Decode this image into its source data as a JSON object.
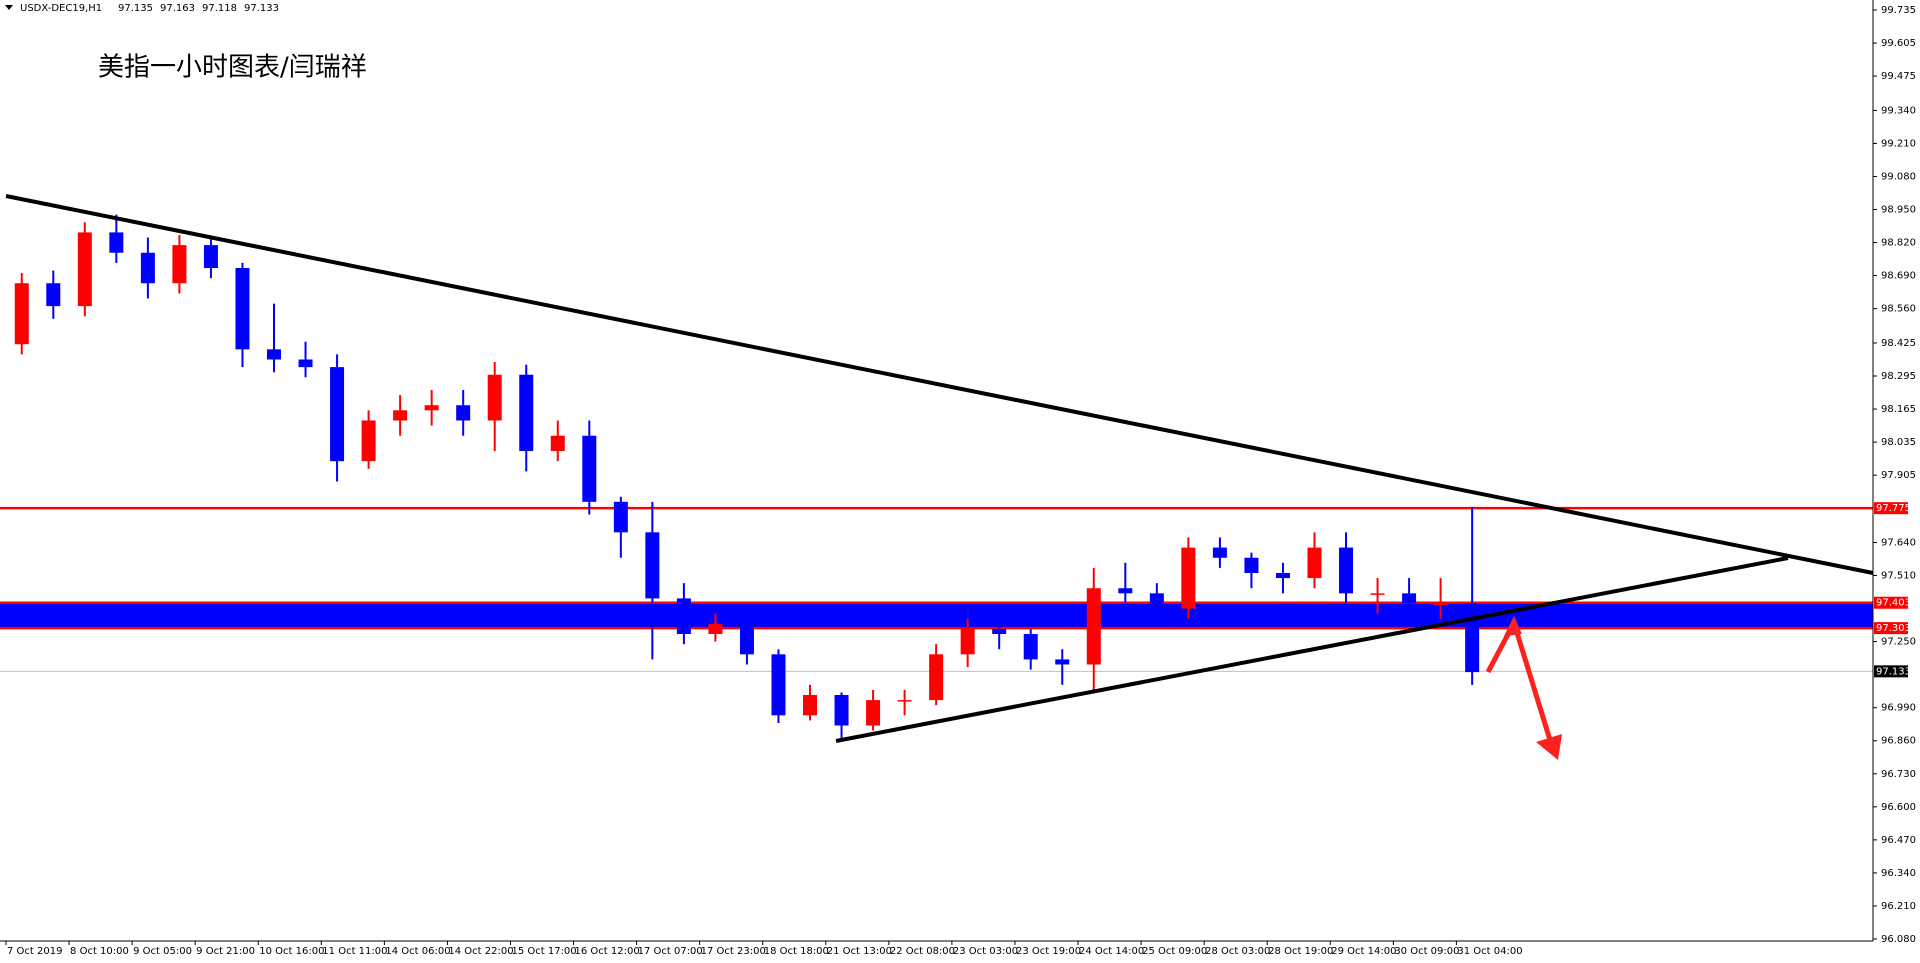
{
  "chart_data": {
    "type": "candlestick",
    "symbol": "USDX-DEC19,H1",
    "quote": [
      97.135,
      97.163,
      97.118,
      97.133
    ],
    "title": "美指一小时图表/闫瑞祥",
    "x_labels": [
      "7 Oct 2019",
      "8 Oct 10:00",
      "9 Oct 05:00",
      "9 Oct 21:00",
      "10 Oct 16:00",
      "11 Oct 11:00",
      "14 Oct 06:00",
      "14 Oct 22:00",
      "15 Oct 17:00",
      "16 Oct 12:00",
      "17 Oct 07:00",
      "17 Oct 23:00",
      "18 Oct 18:00",
      "21 Oct 13:00",
      "22 Oct 08:00",
      "23 Oct 03:00",
      "23 Oct 19:00",
      "24 Oct 14:00",
      "25 Oct 09:00",
      "28 Oct 03:00",
      "28 Oct 19:00",
      "29 Oct 14:00",
      "30 Oct 09:00",
      "31 Oct 04:00"
    ],
    "open": [
      98.42,
      98.66,
      98.57,
      98.86,
      98.78,
      98.66,
      98.81,
      98.72,
      98.4,
      98.36,
      98.33,
      97.96,
      98.12,
      98.16,
      98.18,
      98.12,
      98.3,
      98.0,
      98.06,
      97.8,
      97.68,
      97.42,
      97.28,
      97.32,
      97.2,
      96.96,
      97.04,
      96.92,
      97.02,
      97.02,
      97.2,
      97.3,
      97.28,
      97.18,
      97.16,
      97.46,
      97.44,
      97.38,
      97.62,
      97.58,
      97.52,
      97.5,
      97.62,
      97.44,
      97.44,
      97.4,
      97.4
    ],
    "high": [
      98.7,
      98.71,
      98.9,
      98.93,
      98.84,
      98.85,
      98.84,
      98.74,
      98.58,
      98.43,
      98.38,
      98.16,
      98.22,
      98.24,
      98.24,
      98.35,
      98.34,
      98.12,
      98.12,
      97.82,
      97.8,
      97.48,
      97.36,
      97.35,
      97.22,
      97.08,
      97.05,
      97.06,
      97.06,
      97.24,
      97.34,
      97.38,
      97.3,
      97.22,
      97.54,
      97.56,
      97.48,
      97.66,
      97.66,
      97.6,
      97.56,
      97.68,
      97.68,
      97.5,
      97.5,
      97.5,
      97.78
    ],
    "low": [
      98.38,
      98.52,
      98.53,
      98.74,
      98.6,
      98.62,
      98.68,
      98.33,
      98.31,
      98.29,
      97.88,
      97.93,
      98.06,
      98.1,
      98.06,
      98.0,
      97.92,
      97.96,
      97.75,
      97.58,
      97.18,
      97.24,
      97.25,
      97.16,
      96.93,
      96.94,
      96.86,
      96.9,
      96.96,
      97.0,
      97.15,
      97.22,
      97.14,
      97.08,
      97.05,
      97.38,
      97.32,
      97.34,
      97.54,
      97.46,
      97.44,
      97.46,
      97.38,
      97.36,
      97.34,
      97.34,
      97.08
    ],
    "close": [
      98.66,
      98.57,
      98.86,
      98.78,
      98.66,
      98.81,
      98.72,
      98.4,
      98.36,
      98.33,
      97.96,
      98.12,
      98.16,
      98.18,
      98.12,
      98.3,
      98.0,
      98.06,
      97.8,
      97.68,
      97.42,
      97.28,
      97.32,
      97.2,
      96.96,
      97.04,
      96.92,
      97.02,
      97.02,
      97.2,
      97.3,
      97.28,
      97.18,
      97.16,
      97.46,
      97.44,
      97.38,
      97.62,
      97.58,
      97.52,
      97.5,
      97.62,
      97.44,
      97.44,
      97.4,
      97.4,
      97.13
    ],
    "up_color": "#ff0000",
    "down_color": "#0000ff",
    "ylim": [
      96.08,
      99.735
    ],
    "yticks": [
      99.735,
      99.605,
      99.475,
      {
        "value": 99.34,
        "label": "99.340"
      },
      {
        "value": 99.21,
        "label": "99.210"
      },
      {
        "value": 99.08,
        "label": "99.080"
      },
      {
        "value": 98.95,
        "label": "98.950"
      },
      {
        "value": 98.82,
        "label": "98.820"
      },
      {
        "value": 98.69,
        "label": "98.690"
      },
      {
        "value": 98.56,
        "label": "98.560"
      },
      98.425,
      98.295,
      98.165,
      98.035,
      97.905,
      {
        "value": 97.64,
        "label": "97.640"
      },
      {
        "value": 97.51,
        "label": "97.510"
      },
      {
        "value": 97.25,
        "label": "97.250"
      },
      {
        "value": 96.99,
        "label": "96.990"
      },
      {
        "value": 96.86,
        "label": "96.860"
      },
      {
        "value": 96.73,
        "label": "96.730"
      },
      {
        "value": 96.6,
        "label": "96.600"
      },
      {
        "value": 96.47,
        "label": "96.470"
      },
      {
        "value": 96.34,
        "label": "96.340"
      },
      {
        "value": 96.21,
        "label": "96.210"
      },
      {
        "value": 96.08,
        "label": "96.080"
      }
    ],
    "levels": [
      97.775,
      97.403,
      97.303
    ],
    "level_color": "#ff0000",
    "zone_color": "#0000ff",
    "current_price": 97.133
  }
}
